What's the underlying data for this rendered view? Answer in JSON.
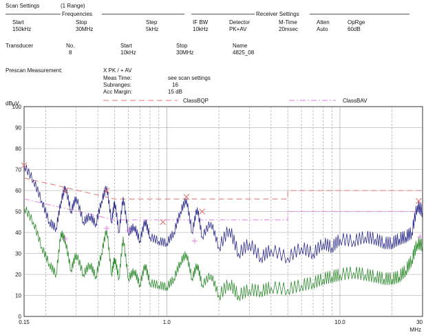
{
  "scan_settings": {
    "title": "Scan Settings",
    "range": "(1  Range)",
    "frequencies_label": "Frequencies",
    "receiver_label": "Receiver Settings",
    "cols": [
      {
        "label": "Start",
        "value": "150kHz"
      },
      {
        "label": "Stop",
        "value": "30MHz"
      },
      {
        "label": "Step",
        "value": "5kHz"
      },
      {
        "label": "IF BW",
        "value": "10kHz"
      },
      {
        "label": "Detector",
        "value": "PK+AV"
      },
      {
        "label": "M-Time",
        "value": "20msec"
      },
      {
        "label": "Atten",
        "value": "Auto"
      },
      {
        "label": "OpRge",
        "value": "60dB"
      }
    ]
  },
  "transducer": {
    "title": "Transducer",
    "cols": [
      {
        "label": "No.",
        "value": "8"
      },
      {
        "label": "Start",
        "value": "10kHz"
      },
      {
        "label": "Stop",
        "value": "30MHz"
      },
      {
        "label": "Name",
        "value": "4825_08"
      }
    ]
  },
  "prescan": {
    "title": "Prescan Measurement:",
    "mode": "X PK / + AV",
    "rows": [
      {
        "label": "Meas Time:",
        "value": "see scan settings"
      },
      {
        "label": "Subranges:",
        "value": "16"
      },
      {
        "label": "Acc Margin:",
        "value": "15 dB"
      }
    ]
  },
  "chart_data": {
    "type": "line",
    "ylabel": "dBµV",
    "xlabel": "MHz",
    "xscale": "log",
    "xlim": [
      0.15,
      30
    ],
    "ylim": [
      0,
      100
    ],
    "x_ticks": [
      {
        "value": 0.15,
        "label": "0.15"
      },
      {
        "value": 1,
        "label": "1.0"
      },
      {
        "value": 10,
        "label": "10.0"
      },
      {
        "value": 30,
        "label": "30"
      }
    ],
    "y_ticks": [
      0,
      10,
      20,
      30,
      40,
      50,
      60,
      70,
      80,
      90,
      100
    ],
    "grid": true,
    "colors": {
      "peak": "#2c2c8c",
      "avg": "#2e8b2e",
      "limit_qp": "#e07070",
      "limit_av": "#e080e0",
      "grid": "#9a9a9a"
    },
    "limits": [
      {
        "name": "ClassBQP",
        "style": "dashed",
        "x": [
          0.15,
          0.5,
          0.5,
          5,
          5,
          30
        ],
        "y": [
          66,
          56,
          56,
          56,
          60,
          60
        ]
      },
      {
        "name": "ClassBAV",
        "style": "dashdot",
        "x": [
          0.15,
          0.5,
          0.5,
          5,
          5,
          30
        ],
        "y": [
          56,
          46,
          46,
          46,
          50,
          50
        ]
      }
    ],
    "series": [
      {
        "kind": "peak",
        "x": [
          0.15,
          0.17,
          0.19,
          0.21,
          0.23,
          0.245,
          0.26,
          0.28,
          0.3,
          0.33,
          0.36,
          0.39,
          0.42,
          0.45,
          0.48,
          0.5,
          0.53,
          0.56,
          0.6,
          0.65,
          0.7,
          0.75,
          0.8,
          0.9,
          1.0,
          1.1,
          1.2,
          1.3,
          1.4,
          1.5,
          1.6,
          1.8,
          2.0,
          2.3,
          2.6,
          3.0,
          3.5,
          4.0,
          5.0,
          6.0,
          7.0,
          8.0,
          9.0,
          10.0,
          12.0,
          14.0,
          16.0,
          18.0,
          20.0,
          22.0,
          24.0,
          26.0,
          28.0,
          30.0
        ],
        "y": [
          72,
          65,
          55,
          45,
          42,
          55,
          62,
          50,
          57,
          45,
          48,
          44,
          55,
          62,
          45,
          55,
          40,
          57,
          40,
          43,
          36,
          46,
          38,
          36,
          35,
          40,
          50,
          56,
          40,
          52,
          38,
          45,
          33,
          42,
          30,
          35,
          28,
          32,
          28,
          33,
          30,
          35,
          33,
          37,
          36,
          38,
          37,
          35,
          35,
          37,
          38,
          40,
          53,
          50
        ]
      },
      {
        "kind": "avg",
        "x": [
          0.15,
          0.17,
          0.19,
          0.21,
          0.23,
          0.245,
          0.26,
          0.28,
          0.3,
          0.33,
          0.36,
          0.39,
          0.42,
          0.45,
          0.48,
          0.5,
          0.53,
          0.56,
          0.6,
          0.65,
          0.7,
          0.75,
          0.8,
          0.9,
          1.0,
          1.1,
          1.2,
          1.3,
          1.4,
          1.5,
          1.6,
          1.8,
          2.0,
          2.3,
          2.6,
          3.0,
          3.5,
          4.0,
          5.0,
          6.0,
          7.0,
          8.0,
          9.0,
          10.0,
          12.0,
          14.0,
          16.0,
          18.0,
          20.0,
          22.0,
          24.0,
          26.0,
          28.0,
          30.0
        ],
        "y": [
          52,
          45,
          33,
          25,
          20,
          40,
          36,
          22,
          30,
          20,
          25,
          19,
          30,
          42,
          20,
          28,
          18,
          38,
          18,
          22,
          15,
          25,
          16,
          15,
          14,
          18,
          26,
          30,
          18,
          25,
          15,
          20,
          10,
          16,
          10,
          13,
          12,
          14,
          13,
          15,
          16,
          18,
          19,
          20,
          21,
          20,
          19,
          18,
          18,
          19,
          22,
          27,
          35,
          34
        ]
      }
    ],
    "peak_markers": [
      {
        "x": 0.15,
        "y": 72
      },
      {
        "x": 0.26,
        "y": 60
      },
      {
        "x": 0.45,
        "y": 60
      },
      {
        "x": 0.95,
        "y": 45
      },
      {
        "x": 1.3,
        "y": 57
      },
      {
        "x": 1.6,
        "y": 50
      },
      {
        "x": 28.5,
        "y": 55
      }
    ],
    "avg_markers": [
      {
        "x": 0.26,
        "y": 37
      },
      {
        "x": 0.45,
        "y": 42
      },
      {
        "x": 0.6,
        "y": 41
      },
      {
        "x": 1.45,
        "y": 36
      },
      {
        "x": 29.0,
        "y": 38
      }
    ]
  }
}
